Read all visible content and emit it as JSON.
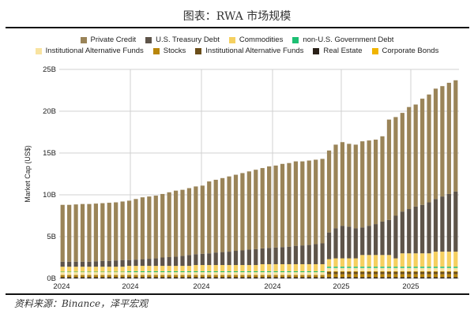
{
  "title": "图表：RWA 市场规模",
  "source": "资料来源：Binance，泽平宏观",
  "chart_data": {
    "type": "bar",
    "stacked": true,
    "title": "图表：RWA 市场规模",
    "xlabel": "",
    "ylabel": "Market Cap (US$)",
    "ylim": [
      0,
      25
    ],
    "y_ticks": [
      "0B",
      "5B",
      "10B",
      "15B",
      "20B",
      "25B"
    ],
    "x_ticks": [
      "2024",
      "2024",
      "2024",
      "2024",
      "2025",
      "2025"
    ],
    "grid": true,
    "legend_position": "top",
    "legend_rows": [
      [
        0,
        1,
        2,
        3
      ],
      [
        4,
        5,
        6,
        7,
        8
      ]
    ],
    "series": [
      {
        "name": "Private Credit",
        "color": "#9a8458",
        "values": [
          6.8,
          6.8,
          6.85,
          6.9,
          6.9,
          6.9,
          6.9,
          6.95,
          6.95,
          7.0,
          7.1,
          7.25,
          7.4,
          7.45,
          7.5,
          7.6,
          7.75,
          7.9,
          7.9,
          8.0,
          8.1,
          8.15,
          8.6,
          8.7,
          8.85,
          9.0,
          9.1,
          9.25,
          9.35,
          9.5,
          9.6,
          9.75,
          9.8,
          9.95,
          10.0,
          10.1,
          10.05,
          10.1,
          10.1,
          10.1,
          9.8,
          10.0,
          10.0,
          9.9,
          10.0,
          10.3,
          10.2,
          10.1,
          10.2,
          12.0,
          11.8,
          11.8,
          12.2,
          12.2,
          12.7,
          12.9,
          13.2,
          13.2,
          13.3,
          13.3
        ]
      },
      {
        "name": "U.S. Treasury Debt",
        "color": "#5e5449",
        "values": [
          0.6,
          0.6,
          0.6,
          0.6,
          0.6,
          0.65,
          0.7,
          0.7,
          0.75,
          0.8,
          0.7,
          0.75,
          0.8,
          0.85,
          0.9,
          1.0,
          1.05,
          1.1,
          1.2,
          1.3,
          1.3,
          1.35,
          1.4,
          1.5,
          1.55,
          1.6,
          1.7,
          1.75,
          1.85,
          1.9,
          1.9,
          1.95,
          2.0,
          2.05,
          2.1,
          2.2,
          2.25,
          2.3,
          2.4,
          2.5,
          3.2,
          3.6,
          3.9,
          3.8,
          3.6,
          3.3,
          3.5,
          3.7,
          4.0,
          4.2,
          5.1,
          5.0,
          5.3,
          5.6,
          5.8,
          6.1,
          6.3,
          6.6,
          6.9,
          7.2
        ]
      },
      {
        "name": "Commodities",
        "color": "#f5d060",
        "values": [
          0.6,
          0.6,
          0.6,
          0.6,
          0.6,
          0.6,
          0.6,
          0.6,
          0.6,
          0.6,
          0.65,
          0.65,
          0.65,
          0.65,
          0.65,
          0.65,
          0.65,
          0.65,
          0.65,
          0.65,
          0.75,
          0.75,
          0.75,
          0.75,
          0.75,
          0.75,
          0.75,
          0.75,
          0.75,
          0.75,
          0.85,
          0.85,
          0.85,
          0.85,
          0.85,
          0.85,
          0.85,
          0.85,
          0.85,
          0.85,
          0.9,
          1.0,
          1.0,
          1.0,
          1.0,
          1.4,
          1.4,
          1.4,
          1.4,
          1.4,
          1.0,
          1.6,
          1.6,
          1.6,
          1.6,
          1.6,
          1.8,
          1.8,
          1.8,
          1.8
        ]
      },
      {
        "name": "non-U.S. Government Debt",
        "color": "#1dbf73",
        "values": [
          0.05,
          0.05,
          0.05,
          0.05,
          0.05,
          0.05,
          0.05,
          0.05,
          0.05,
          0.05,
          0.1,
          0.1,
          0.1,
          0.1,
          0.1,
          0.1,
          0.1,
          0.1,
          0.1,
          0.1,
          0.1,
          0.1,
          0.1,
          0.1,
          0.1,
          0.1,
          0.1,
          0.1,
          0.1,
          0.1,
          0.1,
          0.1,
          0.1,
          0.1,
          0.1,
          0.1,
          0.1,
          0.1,
          0.1,
          0.1,
          0.15,
          0.15,
          0.15,
          0.15,
          0.15,
          0.15,
          0.15,
          0.15,
          0.15,
          0.15,
          0.15,
          0.15,
          0.15,
          0.15,
          0.15,
          0.15,
          0.15,
          0.15,
          0.15,
          0.15
        ]
      },
      {
        "name": "Institutional Alternative Funds",
        "color": "#f8e3a0",
        "values": [
          0.3,
          0.3,
          0.3,
          0.3,
          0.3,
          0.3,
          0.3,
          0.3,
          0.3,
          0.3,
          0.3,
          0.3,
          0.3,
          0.3,
          0.3,
          0.3,
          0.3,
          0.3,
          0.3,
          0.3,
          0.3,
          0.3,
          0.3,
          0.3,
          0.3,
          0.3,
          0.3,
          0.3,
          0.3,
          0.3,
          0.3,
          0.3,
          0.3,
          0.3,
          0.3,
          0.3,
          0.3,
          0.3,
          0.3,
          0.3,
          0.4,
          0.4,
          0.4,
          0.4,
          0.4,
          0.4,
          0.4,
          0.4,
          0.4,
          0.4,
          0.4,
          0.4,
          0.4,
          0.4,
          0.4,
          0.4,
          0.4,
          0.4,
          0.4,
          0.4
        ]
      },
      {
        "name": "Stocks",
        "color": "#b8860b",
        "values": [
          0.2,
          0.2,
          0.2,
          0.2,
          0.2,
          0.2,
          0.2,
          0.2,
          0.2,
          0.2,
          0.2,
          0.2,
          0.2,
          0.2,
          0.2,
          0.2,
          0.2,
          0.2,
          0.2,
          0.2,
          0.2,
          0.2,
          0.2,
          0.2,
          0.2,
          0.2,
          0.2,
          0.2,
          0.2,
          0.2,
          0.2,
          0.2,
          0.2,
          0.2,
          0.2,
          0.2,
          0.2,
          0.2,
          0.2,
          0.2,
          0.35,
          0.35,
          0.35,
          0.35,
          0.35,
          0.35,
          0.35,
          0.35,
          0.35,
          0.35,
          0.35,
          0.35,
          0.35,
          0.35,
          0.35,
          0.35,
          0.35,
          0.35,
          0.35,
          0.35
        ]
      },
      {
        "name": "Institutional Alternative Funds",
        "color": "#6b4e1a",
        "values": [
          0.05,
          0.05,
          0.05,
          0.05,
          0.05,
          0.05,
          0.05,
          0.05,
          0.05,
          0.05,
          0.05,
          0.05,
          0.05,
          0.05,
          0.05,
          0.05,
          0.05,
          0.05,
          0.05,
          0.05,
          0.05,
          0.05,
          0.05,
          0.05,
          0.05,
          0.05,
          0.05,
          0.05,
          0.05,
          0.05,
          0.05,
          0.05,
          0.05,
          0.05,
          0.05,
          0.05,
          0.05,
          0.05,
          0.05,
          0.05,
          0.3,
          0.3,
          0.3,
          0.3,
          0.3,
          0.3,
          0.3,
          0.3,
          0.3,
          0.3,
          0.3,
          0.3,
          0.3,
          0.3,
          0.3,
          0.3,
          0.3,
          0.3,
          0.3,
          0.3
        ]
      },
      {
        "name": "Real Estate",
        "color": "#2a2118",
        "values": [
          0.15,
          0.15,
          0.15,
          0.15,
          0.15,
          0.15,
          0.15,
          0.15,
          0.15,
          0.15,
          0.15,
          0.15,
          0.15,
          0.15,
          0.15,
          0.15,
          0.15,
          0.15,
          0.15,
          0.15,
          0.15,
          0.15,
          0.15,
          0.15,
          0.15,
          0.15,
          0.15,
          0.15,
          0.15,
          0.15,
          0.15,
          0.15,
          0.15,
          0.15,
          0.15,
          0.15,
          0.15,
          0.15,
          0.15,
          0.15,
          0.15,
          0.15,
          0.15,
          0.15,
          0.15,
          0.15,
          0.15,
          0.15,
          0.15,
          0.15,
          0.15,
          0.15,
          0.15,
          0.15,
          0.15,
          0.15,
          0.15,
          0.15,
          0.15,
          0.15
        ]
      },
      {
        "name": "Corporate Bonds",
        "color": "#f0b400",
        "values": [
          0.05,
          0.05,
          0.05,
          0.05,
          0.05,
          0.05,
          0.05,
          0.05,
          0.05,
          0.05,
          0.05,
          0.05,
          0.05,
          0.05,
          0.05,
          0.05,
          0.05,
          0.05,
          0.05,
          0.05,
          0.05,
          0.05,
          0.05,
          0.05,
          0.05,
          0.05,
          0.05,
          0.05,
          0.05,
          0.05,
          0.05,
          0.05,
          0.05,
          0.05,
          0.05,
          0.05,
          0.05,
          0.05,
          0.05,
          0.05,
          0.05,
          0.05,
          0.05,
          0.05,
          0.05,
          0.05,
          0.05,
          0.05,
          0.05,
          0.05,
          0.05,
          0.05,
          0.05,
          0.05,
          0.05,
          0.05,
          0.05,
          0.05,
          0.05,
          0.05
        ]
      }
    ],
    "stack_order_bottom_to_top": [
      7,
      5,
      6,
      8,
      4,
      3,
      2,
      1,
      0
    ]
  }
}
